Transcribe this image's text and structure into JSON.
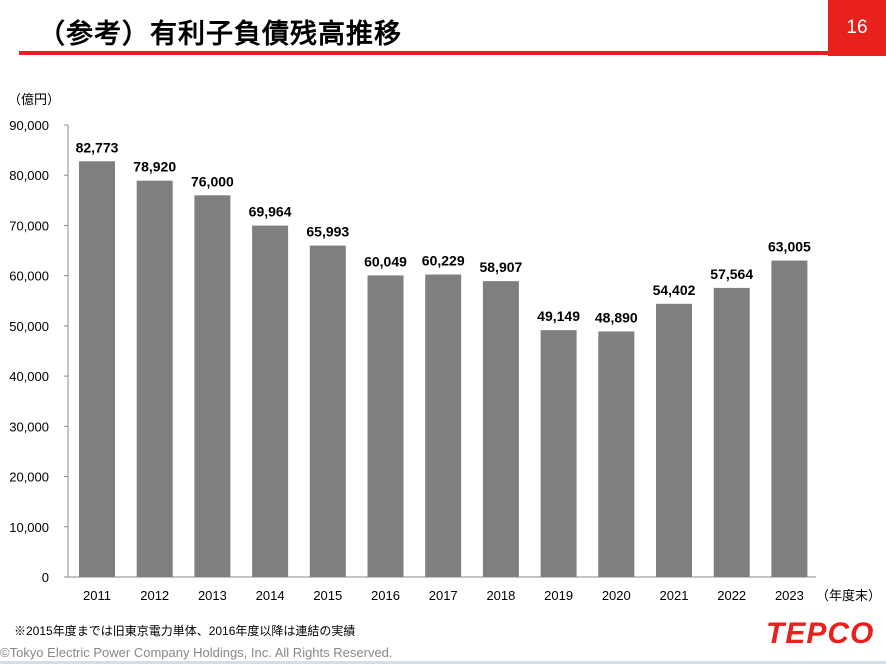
{
  "header": {
    "title": "（参考）有利子負債残高推移",
    "page_number": "16"
  },
  "chart_data": {
    "type": "bar",
    "title": "",
    "ylabel": "（億円）",
    "xlabel": "（年度末）",
    "ylim": [
      0,
      90000
    ],
    "yticks": [
      0,
      10000,
      20000,
      30000,
      40000,
      50000,
      60000,
      70000,
      80000,
      90000
    ],
    "ytick_labels": [
      "0",
      "10,000",
      "20,000",
      "30,000",
      "40,000",
      "50,000",
      "60,000",
      "70,000",
      "80,000",
      "90,000"
    ],
    "categories": [
      "2011",
      "2012",
      "2013",
      "2014",
      "2015",
      "2016",
      "2017",
      "2018",
      "2019",
      "2020",
      "2021",
      "2022",
      "2023"
    ],
    "values": [
      82773,
      78920,
      76000,
      69964,
      65993,
      60049,
      60229,
      58907,
      49149,
      48890,
      54402,
      57564,
      63005
    ],
    "value_labels": [
      "82,773",
      "78,920",
      "76,000",
      "69,964",
      "65,993",
      "60,049",
      "60,229",
      "58,907",
      "49,149",
      "48,890",
      "54,402",
      "57,564",
      "63,005"
    ],
    "bar_color": "#7f7f7f",
    "grid": false,
    "legend": "none"
  },
  "footer": {
    "note": "※2015年度までは旧東京電力単体、2016年度以降は連結の実績",
    "copyright": "©Tokyo Electric Power Company Holdings, Inc. All Rights Reserved.",
    "logo": "TEPCO"
  }
}
